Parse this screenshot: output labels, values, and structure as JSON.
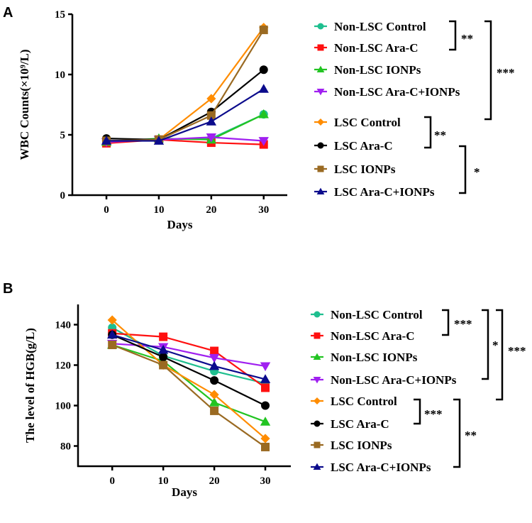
{
  "colors": {
    "Non-LSC Control": "#1fbf8f",
    "Non-LSC Ara-C": "#ff1010",
    "Non-LSC IONPs": "#22c422",
    "Non-LSC Ara-C+IONPs": "#a020f0",
    "LSC Control": "#ff8c00",
    "LSC Ara-C": "#000000",
    "LSC IONPs": "#9a6a22",
    "LSC Ara-C+IONPs": "#0b0b8c"
  },
  "chart_data": [
    {
      "panel": "A",
      "type": "line",
      "xlabel": "Days",
      "ylabel": "WBC Counts(×10⁹/L)",
      "x": [
        0,
        10,
        20,
        30
      ],
      "xticks": [
        "0",
        "10",
        "20",
        "30"
      ],
      "yticks": [
        "0",
        "5",
        "10",
        "15"
      ],
      "ytick_values": [
        0,
        5,
        10,
        15
      ],
      "xlim": [
        -6.5,
        34.5
      ],
      "ylim": [
        0,
        15
      ],
      "legend_position": "right",
      "series": [
        {
          "name": "Non-LSC Control",
          "marker": "circle",
          "values": [
            4.4,
            4.6,
            4.7,
            6.7
          ]
        },
        {
          "name": "Non-LSC Ara-C",
          "marker": "square",
          "values": [
            4.3,
            4.6,
            4.35,
            4.2
          ]
        },
        {
          "name": "Non-LSC IONPs",
          "marker": "triangle-up",
          "values": [
            4.4,
            4.7,
            4.6,
            6.7
          ]
        },
        {
          "name": "Non-LSC Ara-C+IONPs",
          "marker": "triangle-down",
          "values": [
            4.4,
            4.6,
            4.8,
            4.5
          ]
        },
        {
          "name": "LSC Control",
          "marker": "diamond",
          "values": [
            4.5,
            4.6,
            8.0,
            13.9
          ]
        },
        {
          "name": "LSC Ara-C",
          "marker": "circle",
          "values": [
            4.7,
            4.6,
            6.9,
            10.4
          ]
        },
        {
          "name": "LSC IONPs",
          "marker": "square",
          "values": [
            4.5,
            4.6,
            6.6,
            13.7
          ]
        },
        {
          "name": "LSC Ara-C+IONPs",
          "marker": "triangle-up",
          "values": [
            4.5,
            4.5,
            6.1,
            8.8
          ]
        }
      ],
      "significance": [
        {
          "label": "**",
          "from": 0,
          "to": 1
        },
        {
          "label": "***",
          "from": 0,
          "to": 3
        },
        {
          "label": "**",
          "from": 4,
          "to": 5
        },
        {
          "label": "*",
          "from": 5,
          "to": 7
        }
      ]
    },
    {
      "panel": "B",
      "type": "line",
      "xlabel": "Days",
      "ylabel": "The level of HGB(g/L)",
      "x": [
        0,
        10,
        20,
        30
      ],
      "xticks": [
        "0",
        "10",
        "20",
        "30"
      ],
      "yticks": [
        "80",
        "100",
        "120",
        "140"
      ],
      "ytick_values": [
        80,
        100,
        120,
        140
      ],
      "xlim": [
        -6.7,
        35
      ],
      "ylim": [
        70,
        150
      ],
      "legend_position": "right",
      "series": [
        {
          "name": "Non-LSC Control",
          "marker": "circle",
          "values": [
            138.5,
            124.6,
            117,
            111
          ]
        },
        {
          "name": "Non-LSC Ara-C",
          "marker": "square",
          "values": [
            135.7,
            134,
            127,
            108.8
          ]
        },
        {
          "name": "Non-LSC IONPs",
          "marker": "triangle-up",
          "values": [
            130,
            122,
            101.5,
            92
          ]
        },
        {
          "name": "Non-LSC Ara-C+IONPs",
          "marker": "triangle-down",
          "values": [
            130.6,
            129,
            123.6,
            119.5
          ]
        },
        {
          "name": "LSC Control",
          "marker": "diamond",
          "values": [
            142.3,
            120,
            105.4,
            83.7
          ]
        },
        {
          "name": "LSC Ara-C",
          "marker": "circle",
          "values": [
            135,
            124,
            112.4,
            100
          ]
        },
        {
          "name": "LSC IONPs",
          "marker": "square",
          "values": [
            130,
            120,
            97.4,
            79.5
          ]
        },
        {
          "name": "LSC Ara-C+IONPs",
          "marker": "triangle-up",
          "values": [
            135,
            127.5,
            119.5,
            113
          ]
        }
      ],
      "significance": [
        {
          "label": "***",
          "from": 0,
          "to": 1
        },
        {
          "label": "*",
          "from": 0,
          "to": 3
        },
        {
          "label": "***",
          "from": 0,
          "to": 4
        },
        {
          "label": "***",
          "from": 4,
          "to": 5
        },
        {
          "label": "**",
          "from": 4,
          "to": 7
        }
      ]
    }
  ]
}
